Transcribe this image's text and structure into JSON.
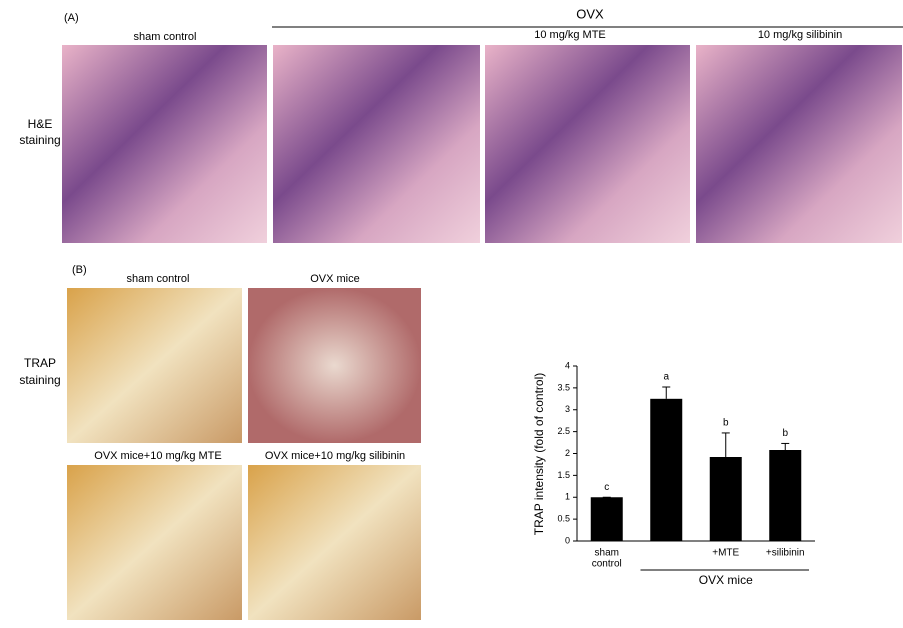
{
  "panel_a": {
    "label": "(A)",
    "group": "OVX",
    "row_label": [
      "H&E",
      "staining"
    ],
    "columns": [
      "sham control",
      "10 mg/kg MTE",
      "10 mg/kg silibinin"
    ]
  },
  "panel_b": {
    "label": "(B)",
    "row_label": [
      "TRAP",
      "staining"
    ],
    "images": [
      "sham control",
      "OVX mice",
      "OVX mice+10 mg/kg MTE",
      "OVX mice+10 mg/kg silibinin"
    ]
  },
  "chart_data": {
    "type": "bar",
    "y_label": "TRAP intensity (fold of control)",
    "categories": [
      [
        "sham",
        "control"
      ],
      null,
      [
        "+MTE"
      ],
      [
        "+silibinin"
      ]
    ],
    "values": [
      1,
      3.25,
      1.92,
      2.08
    ],
    "errors": [
      0,
      0.27,
      0.55,
      0.15
    ],
    "significance": [
      "c",
      "a",
      "b",
      "b"
    ],
    "group_label": "OVX mice",
    "color": "#000000",
    "ylim": [
      0,
      4
    ],
    "yticks": [
      0,
      0.5,
      1,
      1.5,
      2,
      2.5,
      3,
      3.5,
      4
    ]
  }
}
